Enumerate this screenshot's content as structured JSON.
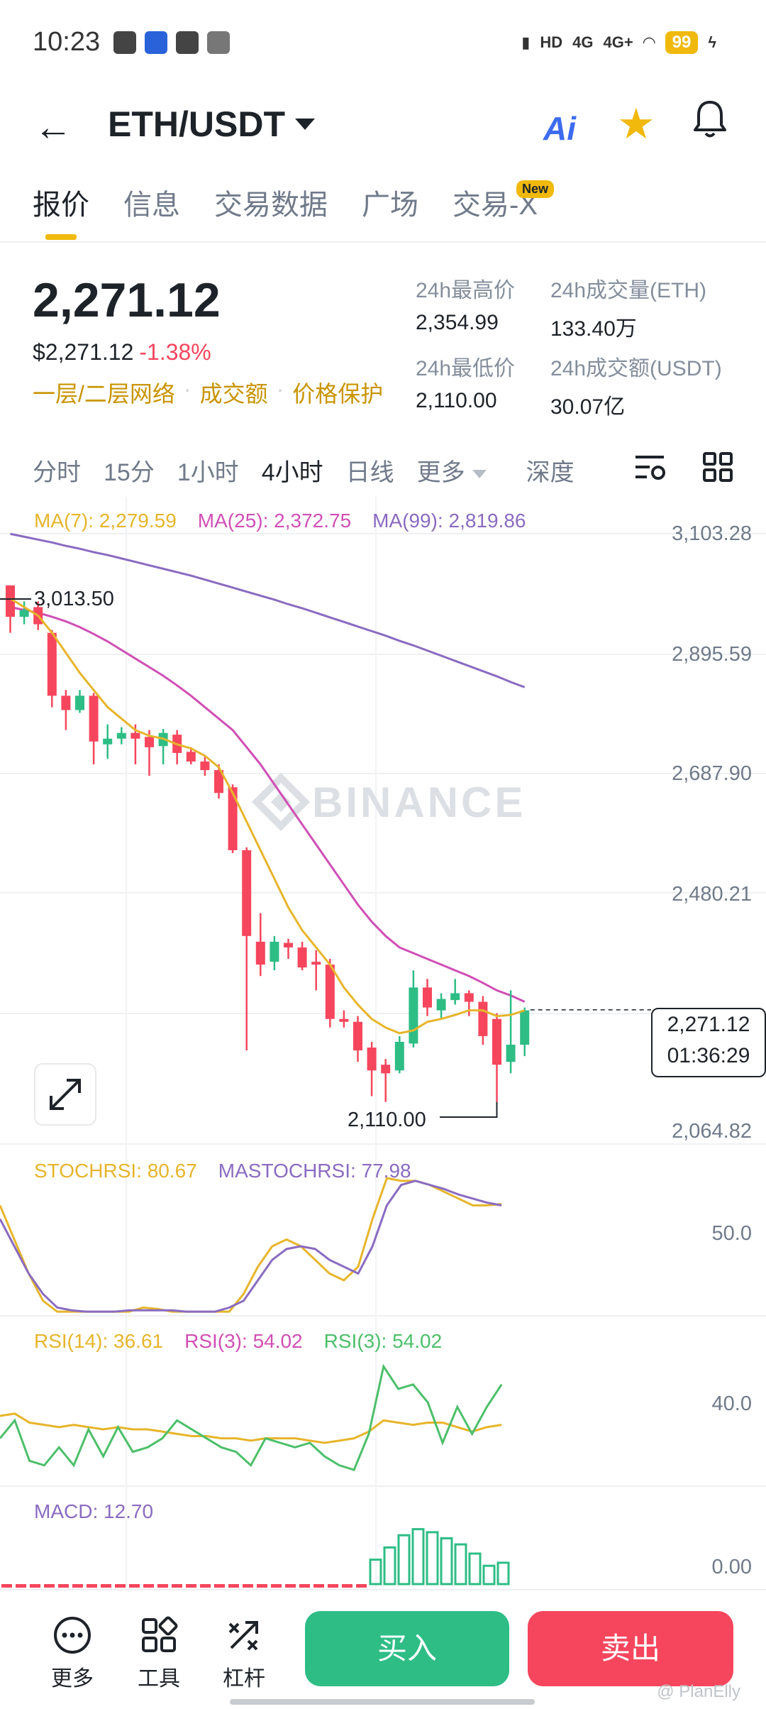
{
  "status_bar": {
    "time": "10:23",
    "battery": "99",
    "net1": "HD",
    "net2": "4G",
    "net3": "4G+"
  },
  "header": {
    "pair": "ETH/USDT",
    "ai_label": "Ai"
  },
  "tabs": [
    {
      "label": "报价",
      "active": true
    },
    {
      "label": "信息"
    },
    {
      "label": "交易数据"
    },
    {
      "label": "广场"
    },
    {
      "label": "交易-X",
      "badge": "New"
    }
  ],
  "price": {
    "last": "2,271.12",
    "fiat": "$2,271.12",
    "change": "-1.38%",
    "links": [
      "一层/二层网络",
      "成交额",
      "价格保护"
    ]
  },
  "stats": {
    "high_label": "24h最高价",
    "high": "2,354.99",
    "low_label": "24h最低价",
    "low": "2,110.00",
    "vol_eth_label": "24h成交量(ETH)",
    "vol_eth": "133.40万",
    "vol_usdt_label": "24h成交额(USDT)",
    "vol_usdt": "30.07亿"
  },
  "intervals": {
    "items": [
      "分时",
      "15分",
      "1小时",
      "4小时",
      "日线"
    ],
    "active": "4小时",
    "more": "更多",
    "depth": "深度"
  },
  "chart_data": {
    "type": "candlestick",
    "ma": [
      {
        "name": "MA(7)",
        "value": "2,279.59",
        "color": "#e7b52a"
      },
      {
        "name": "MA(25)",
        "value": "2,372.75",
        "color": "#d04fb5"
      },
      {
        "name": "MA(99)",
        "value": "2,819.86",
        "color": "#8a6bc1"
      }
    ],
    "y_ticks": [
      "3,103.28",
      "2,895.59",
      "2,687.90",
      "2,480.21",
      "2,064.82"
    ],
    "ylim": [
      2064.82,
      3103.28
    ],
    "high_annotation": "3,013.50",
    "low_annotation": "2,110.00",
    "current_price": "2,271.12",
    "countdown": "01:36:29",
    "watermark": "BINANCE",
    "candles": [
      [
        3013,
        2958,
        3013,
        2930
      ],
      [
        2958,
        2970,
        2985,
        2945
      ],
      [
        2975,
        2945,
        2985,
        2935
      ],
      [
        2930,
        2820,
        2935,
        2800
      ],
      [
        2820,
        2795,
        2830,
        2760
      ],
      [
        2795,
        2820,
        2830,
        2790
      ],
      [
        2820,
        2740,
        2825,
        2700
      ],
      [
        2735,
        2745,
        2770,
        2710
      ],
      [
        2745,
        2755,
        2765,
        2735
      ],
      [
        2755,
        2745,
        2770,
        2700
      ],
      [
        2748,
        2730,
        2760,
        2680
      ],
      [
        2732,
        2755,
        2762,
        2700
      ],
      [
        2752,
        2720,
        2760,
        2700
      ],
      [
        2722,
        2705,
        2730,
        2700
      ],
      [
        2705,
        2690,
        2715,
        2680
      ],
      [
        2690,
        2650,
        2700,
        2640
      ],
      [
        2660,
        2550,
        2665,
        2545
      ],
      [
        2550,
        2400,
        2555,
        2200
      ],
      [
        2390,
        2350,
        2440,
        2330
      ],
      [
        2355,
        2390,
        2400,
        2340
      ],
      [
        2388,
        2380,
        2395,
        2360
      ],
      [
        2380,
        2345,
        2390,
        2340
      ],
      [
        2355,
        2350,
        2375,
        2305
      ],
      [
        2350,
        2255,
        2360,
        2240
      ],
      [
        2255,
        2250,
        2270,
        2240
      ],
      [
        2250,
        2200,
        2260,
        2180
      ],
      [
        2205,
        2165,
        2215,
        2120
      ],
      [
        2175,
        2160,
        2185,
        2110
      ],
      [
        2165,
        2215,
        2225,
        2160
      ],
      [
        2212,
        2310,
        2340,
        2205
      ],
      [
        2310,
        2275,
        2325,
        2260
      ],
      [
        2270,
        2290,
        2300,
        2255
      ],
      [
        2288,
        2300,
        2325,
        2280
      ],
      [
        2300,
        2285,
        2305,
        2260
      ],
      [
        2285,
        2225,
        2295,
        2210
      ],
      [
        2255,
        2175,
        2265,
        2110
      ],
      [
        2180,
        2210,
        2305,
        2160
      ],
      [
        2210,
        2270,
        2275,
        2190
      ]
    ],
    "ma7": [
      2990,
      2975,
      2960,
      2930,
      2895,
      2860,
      2830,
      2800,
      2780,
      2760,
      2750,
      2745,
      2735,
      2728,
      2715,
      2695,
      2650,
      2600,
      2550,
      2500,
      2450,
      2410,
      2380,
      2350,
      2310,
      2280,
      2255,
      2240,
      2230,
      2235,
      2250,
      2255,
      2262,
      2270,
      2270,
      2260,
      2262,
      2270
    ],
    "ma25": [
      2975,
      2970,
      2965,
      2958,
      2950,
      2940,
      2928,
      2915,
      2900,
      2885,
      2870,
      2855,
      2838,
      2820,
      2800,
      2780,
      2760,
      2730,
      2700,
      2665,
      2630,
      2595,
      2560,
      2525,
      2490,
      2455,
      2425,
      2400,
      2380,
      2370,
      2360,
      2350,
      2340,
      2330,
      2318,
      2305,
      2296,
      2285
    ],
    "ma99": [
      3103,
      3098,
      3093,
      3088,
      3082,
      3077,
      3071,
      3066,
      3060,
      3054,
      3048,
      3042,
      3036,
      3030,
      3023,
      3016,
      3009,
      3002,
      2995,
      2988,
      2980,
      2973,
      2965,
      2957,
      2949,
      2941,
      2933,
      2925,
      2916,
      2908,
      2899,
      2890,
      2881,
      2872,
      2863,
      2854,
      2844,
      2835
    ],
    "stoch": {
      "labels": [
        "STOCHRSI: 80.67",
        "MASTOCHRSI: 77.98"
      ],
      "tick": "50.0",
      "k": [
        80,
        55,
        30,
        10,
        2,
        2,
        2,
        2,
        2,
        2,
        5,
        4,
        2,
        2,
        2,
        2,
        2,
        15,
        35,
        50,
        55,
        50,
        40,
        30,
        25,
        35,
        70,
        100,
        98,
        98,
        95,
        90,
        85,
        80,
        80,
        81
      ],
      "d": [
        70,
        50,
        30,
        15,
        5,
        3,
        2,
        2,
        2,
        3,
        3,
        3,
        3,
        2,
        2,
        2,
        5,
        10,
        25,
        40,
        48,
        50,
        48,
        40,
        35,
        30,
        50,
        80,
        95,
        98,
        95,
        92,
        88,
        85,
        82,
        80
      ]
    },
    "rsi": {
      "labels": [
        "RSI(14): 36.61",
        "RSI(3): 54.02",
        "RSI(3): 54.02"
      ],
      "tick": "40.0",
      "r14": [
        40,
        41,
        37,
        36,
        35,
        36,
        35,
        34,
        35,
        34,
        34,
        33,
        32,
        31,
        31,
        30,
        30,
        29,
        30,
        30,
        30,
        29,
        28,
        29,
        30,
        33,
        38,
        37,
        36,
        37,
        37,
        35,
        33,
        35,
        36
      ],
      "r3": [
        30,
        38,
        20,
        18,
        26,
        18,
        34,
        22,
        35,
        24,
        26,
        30,
        38,
        34,
        30,
        26,
        24,
        18,
        30,
        28,
        26,
        28,
        22,
        18,
        16,
        32,
        62,
        52,
        54,
        46,
        28,
        44,
        32,
        44,
        54
      ]
    },
    "macd": {
      "label": "MACD: 12.70",
      "tick": "0.00",
      "bars": [
        -2,
        -2,
        -2,
        -2,
        -2,
        -2,
        -2,
        -2,
        -2,
        -2,
        -2,
        -2,
        -2,
        -2,
        -2,
        -2,
        -2,
        -2,
        -2,
        -2,
        -2,
        -2,
        -2,
        -2,
        -2,
        -2,
        8,
        12,
        16,
        18,
        17,
        15,
        13,
        10,
        6,
        7
      ]
    }
  },
  "bottom_bar": {
    "more": "更多",
    "tools": "工具",
    "leverage": "杠杆",
    "buy": "买入",
    "sell": "卖出"
  },
  "credit": "@ PlanElly"
}
